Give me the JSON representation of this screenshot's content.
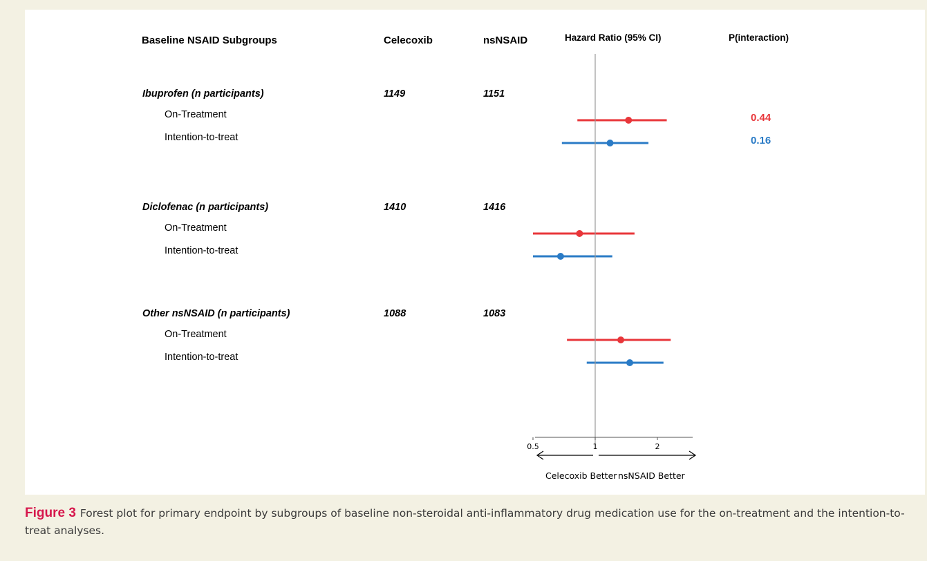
{
  "headers": {
    "subgroups": "Baseline NSAID Subgroups",
    "celecoxib": "Celecoxib",
    "nsnsaid": "nsNSAID",
    "hazard_ratio": "Hazard Ratio (95% CI)",
    "p_interaction": "P(interaction)"
  },
  "groups": [
    {
      "name": "Ibuprofen  (n participants)",
      "celecoxib_n": "1149",
      "nsnsaid_n": "1151",
      "rows": [
        {
          "label": "On-Treatment",
          "hr": 1.45,
          "lo": 0.82,
          "hi": 2.22,
          "color": "#e8363a",
          "p": "0.44"
        },
        {
          "label": "Intention-to-treat",
          "hr": 1.18,
          "lo": 0.69,
          "hi": 1.81,
          "color": "#2a7bc6",
          "p": "0.16"
        }
      ]
    },
    {
      "name": "Diclofenac  (n participants)",
      "celecoxib_n": "1410",
      "nsnsaid_n": "1416",
      "rows": [
        {
          "label": "On-Treatment",
          "hr": 0.84,
          "lo": 0.5,
          "hi": 1.55,
          "color": "#e8363a",
          "p": ""
        },
        {
          "label": "Intention-to-treat",
          "hr": 0.68,
          "lo": 0.5,
          "hi": 1.21,
          "color": "#2a7bc6",
          "p": ""
        }
      ]
    },
    {
      "name": "Other nsNSAID  (n participants)",
      "celecoxib_n": "1088",
      "nsnsaid_n": "1083",
      "rows": [
        {
          "label": "On-Treatment",
          "hr": 1.33,
          "lo": 0.73,
          "hi": 2.32,
          "color": "#e8363a",
          "p": ""
        },
        {
          "label": "Intention-to-treat",
          "hr": 1.47,
          "lo": 0.91,
          "hi": 2.14,
          "color": "#2a7bc6",
          "p": ""
        }
      ]
    }
  ],
  "axis": {
    "ticks": [
      {
        "value": 0.5,
        "label": "0.5"
      },
      {
        "value": 1,
        "label": "1"
      },
      {
        "value": 2,
        "label": "2"
      }
    ],
    "left_label": "Celecoxib Better",
    "right_label": "nsNSAID Better"
  },
  "chart_data": {
    "type": "scatter",
    "x_axis": "Hazard Ratio (95% CI)",
    "ticks": [
      0.5,
      1,
      2
    ],
    "reference_line": 1,
    "series": [
      {
        "name": "On-Treatment",
        "color": "#e8363a",
        "points": [
          {
            "group": "Ibuprofen",
            "hr": 1.45,
            "ci": [
              0.82,
              2.22
            ]
          },
          {
            "group": "Diclofenac",
            "hr": 0.84,
            "ci": [
              0.5,
              1.55
            ]
          },
          {
            "group": "Other nsNSAID",
            "hr": 1.33,
            "ci": [
              0.73,
              2.32
            ]
          }
        ]
      },
      {
        "name": "Intention-to-treat",
        "color": "#2a7bc6",
        "points": [
          {
            "group": "Ibuprofen",
            "hr": 1.18,
            "ci": [
              0.69,
              1.81
            ]
          },
          {
            "group": "Diclofenac",
            "hr": 0.68,
            "ci": [
              0.5,
              1.21
            ]
          },
          {
            "group": "Other nsNSAID",
            "hr": 1.47,
            "ci": [
              0.91,
              2.14
            ]
          }
        ]
      }
    ],
    "p_interaction": {
      "On-Treatment": 0.44,
      "Intention-to-treat": 0.16
    }
  },
  "caption": {
    "label": "Figure 3",
    "text": "Forest plot for primary endpoint by subgroups of baseline non-steroidal anti-inflammatory drug medication use for the on-treatment and the intention-to-treat analyses."
  }
}
